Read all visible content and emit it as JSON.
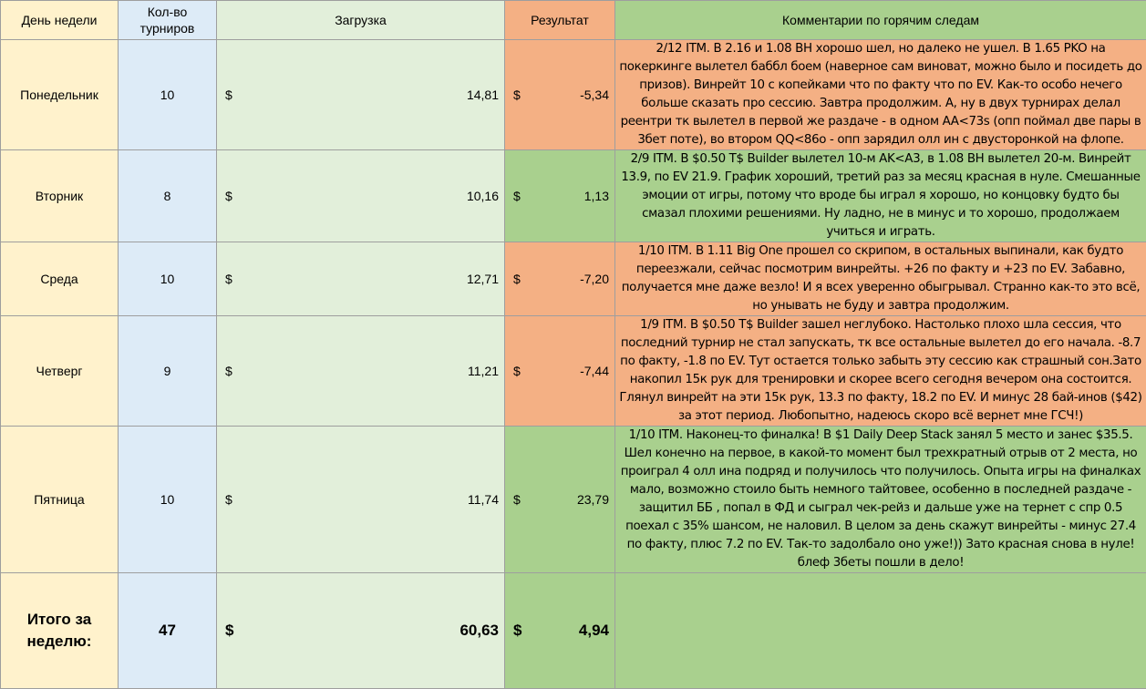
{
  "headers": {
    "day": "День недели",
    "count": "Кол-во турниров",
    "load": "Загрузка",
    "result": "Результат",
    "comments": "Комментарии по горячим следам"
  },
  "currency": "$",
  "rows": [
    {
      "day": "Понедельник",
      "count": "10",
      "load": "14,81",
      "result": "-5,34",
      "comment": "2/12 ITM. В 2.16 и 1.08 BH хорошо шел, но далеко не ушел. В 1.65 PKO на покеркинге вылетел баббл боем (наверное сам виноват, можно было и посидеть до призов). Винрейт 10 с копейками что по факту что по EV. Как-то особо нечего больше сказать про сессию. Завтра продолжим. А, ну в двух турнирах делал реентри тк вылетел в первой же раздаче - в одном AA<73s (опп поймал две пары в 3бет поте), во втором QQ<86o - опп зарядил олл ин с двусторонкой на флопе."
    },
    {
      "day": "Вторник",
      "count": "8",
      "load": "10,16",
      "result": "1,13",
      "comment": "2/9 ITM. В $0.50 T$ Builder вылетел 10-м AK<A3, в 1.08 BH вылетел 20-м. Винрейт 13.9, по EV 21.9. График хороший, третий раз за месяц красная в нуле. Смешанные эмоции от игры, потому что вроде бы играл я хорошо, но концовку будто бы смазал плохими решениями. Ну ладно, не в минус и то хорошо, продолжаем учиться и играть."
    },
    {
      "day": "Среда",
      "count": "10",
      "load": "12,71",
      "result": "-7,20",
      "comment": "1/10 ITM. В 1.11 Big One прошел со скрипом, в остальных выпинали, как будто переезжали, сейчас посмотрим винрейты. +26 по факту и +23 по EV. Забавно, получается мне даже везло! И я всех уверенно обыгрывал. Странно как-то это всё, но унывать не буду и завтра продолжим."
    },
    {
      "day": "Четверг",
      "count": "9",
      "load": "11,21",
      "result": "-7,44",
      "comment": "1/9 ITM. В $0.50 T$ Builder зашел неглубоко. Настолько плохо шла сессия, что последний турнир не стал запускать, тк все остальные вылетел до его начала. -8.7 по факту, -1.8 по EV. Тут остается только забыть эту сессию как страшный сон.Зато накопил 15к рук для тренировки и скорее всего сегодня вечером она состоится. Глянул винрейт на эти 15к рук, 13.3 по факту, 18.2 по EV. И минус 28 бай-инов ($42) за этот период. Любопытно, надеюсь скоро всё вернет мне ГСЧ!)"
    },
    {
      "day": "Пятница",
      "count": "10",
      "load": "11,74",
      "result": "23,79",
      "comment": "1/10 ITM. Наконец-то финалка! В $1 Daily Deep Stack занял 5 место и занес $35.5. Шел конечно на первое, в какой-то момент был трехкратный отрыв от 2 места, но проиграл 4 олл ина подряд и получилось что получилось. Опыта игры на финалках мало, возможно стоило быть немного тайтовее, особенно в последней раздаче - защитил ББ , попал в ФД и сыграл чек-рейз и дальше уже на тернет с спр 0.5 поехал с 35% шансом, не наловил. В целом за день скажут винрейты - минус 27.4 по факту, плюс 7.2 по EV. Так-то задолбало оно уже!)) Зато красная снова в нуле! блеф 3беты пошли в дело!"
    }
  ],
  "total": {
    "label": "Итого за неделю:",
    "count": "47",
    "load": "60,63",
    "result": "4,94"
  },
  "colors": {
    "day_bg": "#fff2cc",
    "count_bg": "#ddebf7",
    "load_bg": "#e2efda",
    "negative_bg": "#f4b084",
    "positive_bg": "#a9d08e"
  }
}
